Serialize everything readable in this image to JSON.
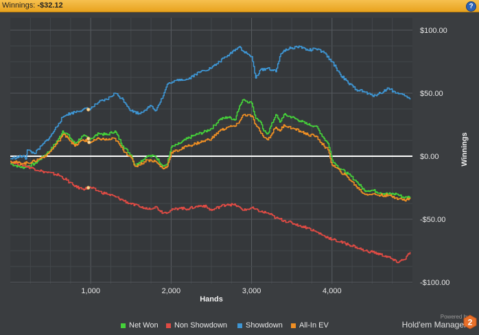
{
  "header": {
    "label": "Winnings:",
    "value": "-$32.12",
    "help": "?"
  },
  "chart_data": {
    "type": "line",
    "xlabel": "Hands",
    "ylabel": "Winnings",
    "xlim": [
      0,
      5000
    ],
    "ylim": [
      -100,
      100
    ],
    "xticks": [
      1000,
      2000,
      3000,
      4000
    ],
    "xtick_labels": [
      "1,000",
      "2,000",
      "3,000",
      "4,000"
    ],
    "yticks": [
      100,
      50,
      0,
      -50,
      -100
    ],
    "ytick_labels": [
      "$100.00",
      "$50.00",
      "$0.00",
      "-$50.00",
      "-$100.00"
    ],
    "grid": true,
    "legend_position": "bottom",
    "series": [
      {
        "name": "Net Won",
        "color": "#45d23a",
        "x": [
          0,
          150,
          300,
          450,
          500,
          600,
          650,
          700,
          800,
          900,
          1000,
          1100,
          1200,
          1300,
          1400,
          1500,
          1550,
          1600,
          1700,
          1800,
          1900,
          1950,
          2000,
          2100,
          2200,
          2300,
          2400,
          2500,
          2600,
          2700,
          2800,
          2820,
          2850,
          2900,
          3000,
          3050,
          3100,
          3150,
          3200,
          3300,
          3350,
          3400,
          3500,
          3600,
          3700,
          3800,
          3900,
          3950,
          4000,
          4050,
          4100,
          4200,
          4300,
          4400,
          4500,
          4600,
          4700,
          4800,
          4900,
          4970
        ],
        "y": [
          -6,
          -9,
          -6,
          2,
          5,
          14,
          20,
          18,
          10,
          16,
          14,
          18,
          17,
          20,
          8,
          1,
          -8,
          -5,
          0,
          0,
          -8,
          -6,
          7,
          10,
          14,
          17,
          19,
          22,
          29,
          31,
          29,
          35,
          40,
          45,
          42,
          30,
          28,
          20,
          18,
          33,
          27,
          33,
          31,
          28,
          25,
          24,
          14,
          10,
          -3,
          -7,
          -10,
          -14,
          -20,
          -27,
          -27,
          -29,
          -30,
          -30,
          -33,
          -32
        ]
      },
      {
        "name": "Non Showdown",
        "color": "#e04b44",
        "x": [
          0,
          200,
          400,
          600,
          700,
          800,
          900,
          1000,
          1100,
          1200,
          1300,
          1400,
          1500,
          1600,
          1700,
          1800,
          1900,
          2000,
          2100,
          2200,
          2300,
          2400,
          2500,
          2600,
          2700,
          2800,
          2900,
          3000,
          3100,
          3200,
          3300,
          3400,
          3500,
          3600,
          3700,
          3800,
          3900,
          4000,
          4100,
          4200,
          4300,
          4400,
          4500,
          4600,
          4700,
          4800,
          4900,
          4970
        ],
        "y": [
          -4,
          -8,
          -12,
          -15,
          -19,
          -24,
          -26,
          -25,
          -28,
          -30,
          -32,
          -35,
          -38,
          -40,
          -42,
          -40,
          -45,
          -43,
          -41,
          -42,
          -40,
          -39,
          -43,
          -40,
          -38,
          -39,
          -43,
          -41,
          -44,
          -45,
          -49,
          -51,
          -53,
          -55,
          -57,
          -60,
          -63,
          -66,
          -68,
          -70,
          -72,
          -75,
          -76,
          -78,
          -80,
          -84,
          -82,
          -76
        ]
      },
      {
        "name": "Showdown",
        "color": "#3e96d4",
        "x": [
          0,
          150,
          200,
          210,
          300,
          500,
          600,
          650,
          700,
          800,
          900,
          1000,
          1100,
          1200,
          1300,
          1400,
          1500,
          1600,
          1700,
          1750,
          1800,
          1900,
          1950,
          2000,
          2100,
          2200,
          2300,
          2400,
          2500,
          2600,
          2700,
          2800,
          2850,
          2900,
          3000,
          3050,
          3100,
          3200,
          3300,
          3350,
          3400,
          3500,
          3600,
          3700,
          3800,
          3900,
          4000,
          4050,
          4100,
          4200,
          4300,
          4400,
          4500,
          4600,
          4700,
          4800,
          4900,
          4970
        ],
        "y": [
          -2,
          0,
          -2,
          5,
          2,
          16,
          26,
          31,
          33,
          35,
          37,
          38,
          43,
          45,
          50,
          45,
          36,
          34,
          38,
          40,
          36,
          48,
          57,
          58,
          61,
          61,
          65,
          68,
          70,
          75,
          80,
          85,
          87,
          83,
          79,
          62,
          68,
          70,
          67,
          79,
          84,
          86,
          87,
          84,
          85,
          82,
          75,
          70,
          65,
          58,
          53,
          51,
          48,
          50,
          54,
          50,
          48,
          45
        ]
      },
      {
        "name": "All-In EV",
        "color": "#f08f23",
        "x": [
          0,
          150,
          300,
          450,
          500,
          600,
          650,
          700,
          800,
          900,
          1000,
          1100,
          1200,
          1300,
          1400,
          1500,
          1550,
          1600,
          1700,
          1800,
          1900,
          1950,
          2000,
          2100,
          2200,
          2300,
          2400,
          2500,
          2600,
          2700,
          2800,
          2850,
          2900,
          3000,
          3050,
          3100,
          3150,
          3200,
          3300,
          3350,
          3400,
          3500,
          3600,
          3700,
          3800,
          3900,
          3950,
          4000,
          4050,
          4100,
          4200,
          4300,
          4400,
          4500,
          4600,
          4700,
          4800,
          4900,
          4970
        ],
        "y": [
          -4,
          -6,
          -4,
          1,
          4,
          12,
          17,
          16,
          8,
          13,
          11,
          14,
          13,
          14,
          5,
          -1,
          -8,
          -7,
          -3,
          -4,
          -10,
          -8,
          3,
          5,
          8,
          10,
          12,
          14,
          20,
          23,
          24,
          28,
          33,
          32,
          25,
          20,
          15,
          13,
          23,
          20,
          25,
          22,
          20,
          17,
          16,
          8,
          5,
          -7,
          -9,
          -12,
          -17,
          -24,
          -30,
          -30,
          -31,
          -31,
          -33,
          -35,
          -33
        ]
      }
    ],
    "markers": [
      {
        "x": 970,
        "y": 37
      },
      {
        "x": 970,
        "y": 14
      },
      {
        "x": 980,
        "y": 11
      },
      {
        "x": 970,
        "y": -25
      }
    ]
  },
  "legend": [
    "Net Won",
    "Non Showdown",
    "Showdown",
    "All-In EV"
  ],
  "brand": {
    "powered": "Powered by",
    "name": "Hold'em Manager",
    "logo_number": "2"
  },
  "colors": {
    "background": "#3a3d40",
    "plot_background": "#35383b",
    "grid": "#4c5054",
    "header": "#f2b43a",
    "zero_line": "#ffffff"
  }
}
